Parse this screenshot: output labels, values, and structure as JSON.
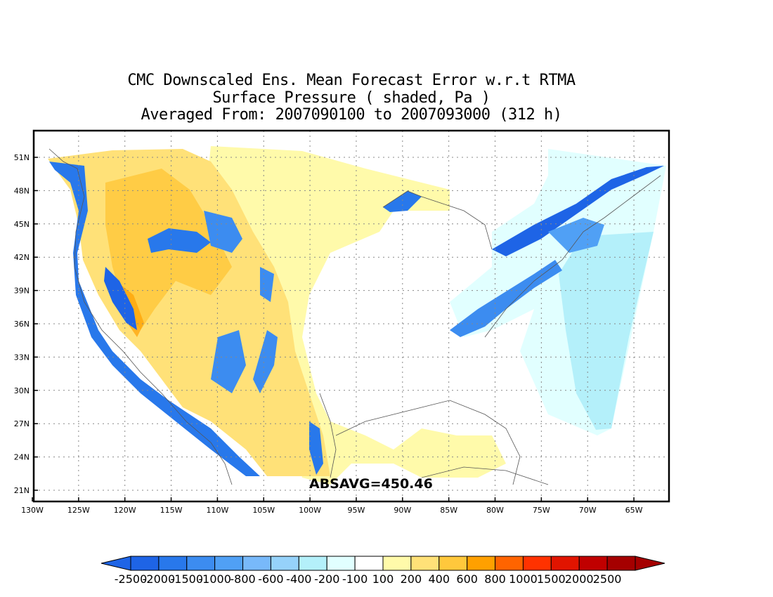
{
  "title": {
    "line1": "CMC Downscaled Ens. Mean Forecast Error w.r.t RTMA",
    "line2": "Surface Pressure ( shaded, Pa )",
    "line3": "Averaged From: 2007090100 to 2007093000 (312 h)"
  },
  "annotation": "ABSAVG=450.46",
  "axes": {
    "lat_labels": [
      "51N",
      "48N",
      "45N",
      "42N",
      "39N",
      "36N",
      "33N",
      "30N",
      "27N",
      "24N",
      "21N"
    ],
    "lon_labels": [
      "130W",
      "125W",
      "120W",
      "115W",
      "110W",
      "105W",
      "100W",
      "95W",
      "90W",
      "85W",
      "80W",
      "75W",
      "70W",
      "65W"
    ]
  },
  "colorbar": {
    "labels": [
      "-2500",
      "-2000",
      "-1500",
      "-1000",
      "-800",
      "-600",
      "-400",
      "-200",
      "-100",
      "100",
      "200",
      "400",
      "600",
      "800",
      "1000",
      "1500",
      "2000",
      "2500"
    ],
    "colors": [
      "#1e64e6",
      "#2878eb",
      "#3c8cf0",
      "#50a0f5",
      "#78b9fa",
      "#96d2fa",
      "#b4f0fa",
      "#e1ffff",
      "#ffffff",
      "#fffaaa",
      "#ffe178",
      "#ffc83c",
      "#ffa000",
      "#ff6400",
      "#ff3200",
      "#e11400",
      "#c00000",
      "#a50000"
    ]
  },
  "chart_data": {
    "type": "heatmap",
    "title": "CMC Downscaled Ens. Mean Forecast Error w.r.t RTMA",
    "subtitle": "Surface Pressure ( shaded, Pa )",
    "period": "Averaged From: 2007090100 to 2007093000 (312 h)",
    "x_range_lon": [
      -130,
      -61
    ],
    "y_range_lat": [
      20,
      53
    ],
    "grid": true,
    "levels": [
      -2500,
      -2000,
      -1500,
      -1000,
      -800,
      -600,
      -400,
      -200,
      -100,
      100,
      200,
      400,
      600,
      800,
      1000,
      1500,
      2000,
      2500
    ],
    "absavg": 450.46
  }
}
